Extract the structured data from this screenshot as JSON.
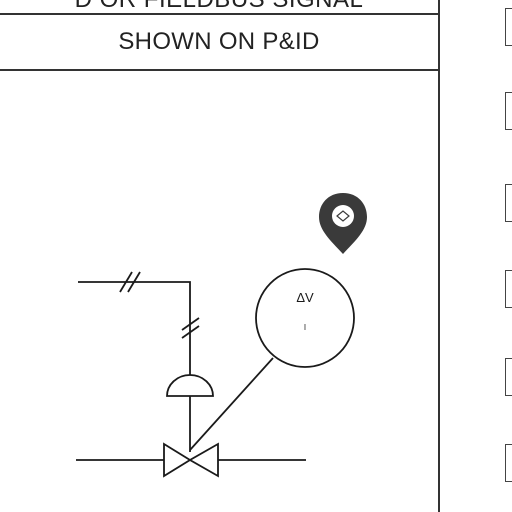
{
  "header": {
    "top_cut_text": "D OR FIELDBUS SIGNAL",
    "title": "SHOWN ON P&ID"
  },
  "diagram": {
    "instrument_label": "ΔV",
    "instrument_sub": "I",
    "location_marker_icon": "map-pin-icon",
    "side_boxes": 6
  },
  "colors": {
    "line": "#1a1a1a",
    "marker": "#3a3a3a",
    "border": "#333333"
  }
}
